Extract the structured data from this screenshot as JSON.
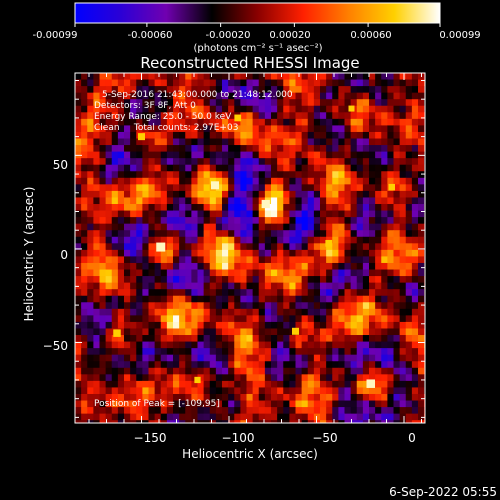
{
  "colorbar": {
    "tick_labels": [
      "-0.00099",
      "-0.00060",
      "-0.00020",
      "0.00020",
      "0.00060",
      "0.00099"
    ],
    "unit_label": "(photons cm⁻² s⁻¹ asec⁻²)",
    "range": [
      -0.00099,
      0.00099
    ],
    "colors": [
      "#0000ff",
      "#2b00d6",
      "#7000b0",
      "#000000",
      "#8a0000",
      "#ff2000",
      "#ff8000",
      "#ffd000",
      "#ffffff"
    ]
  },
  "chart_data": {
    "type": "heatmap",
    "title": "Reconstructed RHESSI Image",
    "xlabel": "Heliocentric X (arcsec)",
    "ylabel": "Heliocentric Y (arcsec)",
    "xlim": [
      -188,
      12
    ],
    "ylim": [
      -93,
      94
    ],
    "x_ticks": [
      -150,
      -100,
      -50,
      0
    ],
    "y_ticks": [
      -50,
      0,
      50
    ],
    "x_tick_labels": [
      "−150",
      "−100",
      "−50",
      "0"
    ],
    "y_tick_labels": [
      "−50",
      "0",
      "50"
    ],
    "grid": false,
    "peak": [
      -109,
      95
    ],
    "bright_sources": [
      {
        "x": -139,
        "y": 1,
        "amp": 1.0
      },
      {
        "x": -79,
        "y": 24,
        "amp": 0.85
      },
      {
        "x": -108,
        "y": 34,
        "amp": 0.8
      },
      {
        "x": -19,
        "y": -72,
        "amp": 0.9
      },
      {
        "x": -164,
        "y": -45,
        "amp": 0.7
      },
      {
        "x": -62,
        "y": -44,
        "amp": 0.6
      },
      {
        "x": -43,
        "y": 3,
        "amp": 0.55
      },
      {
        "x": -7,
        "y": 33,
        "amp": 0.5
      },
      {
        "x": -150,
        "y": 60,
        "amp": 0.6
      },
      {
        "x": -95,
        "y": 70,
        "amp": 0.55
      },
      {
        "x": -118,
        "y": -70,
        "amp": 0.45
      },
      {
        "x": -30,
        "y": 75,
        "amp": 0.4
      }
    ],
    "annotations": {
      "time_range": "5-Sep-2016 21:43:00.000 to 21:48:12.000",
      "detectors": "Detectors: 3F 8F, Att 0",
      "energy_range": "Energy Range: 25.0 - 50.0 keV",
      "method_counts": "Clean     Total counts: 2.97E+03",
      "peak_position": "Position of Peak = [-109,95]"
    }
  },
  "footer": {
    "timestamp": "6-Sep-2022 05:55"
  }
}
